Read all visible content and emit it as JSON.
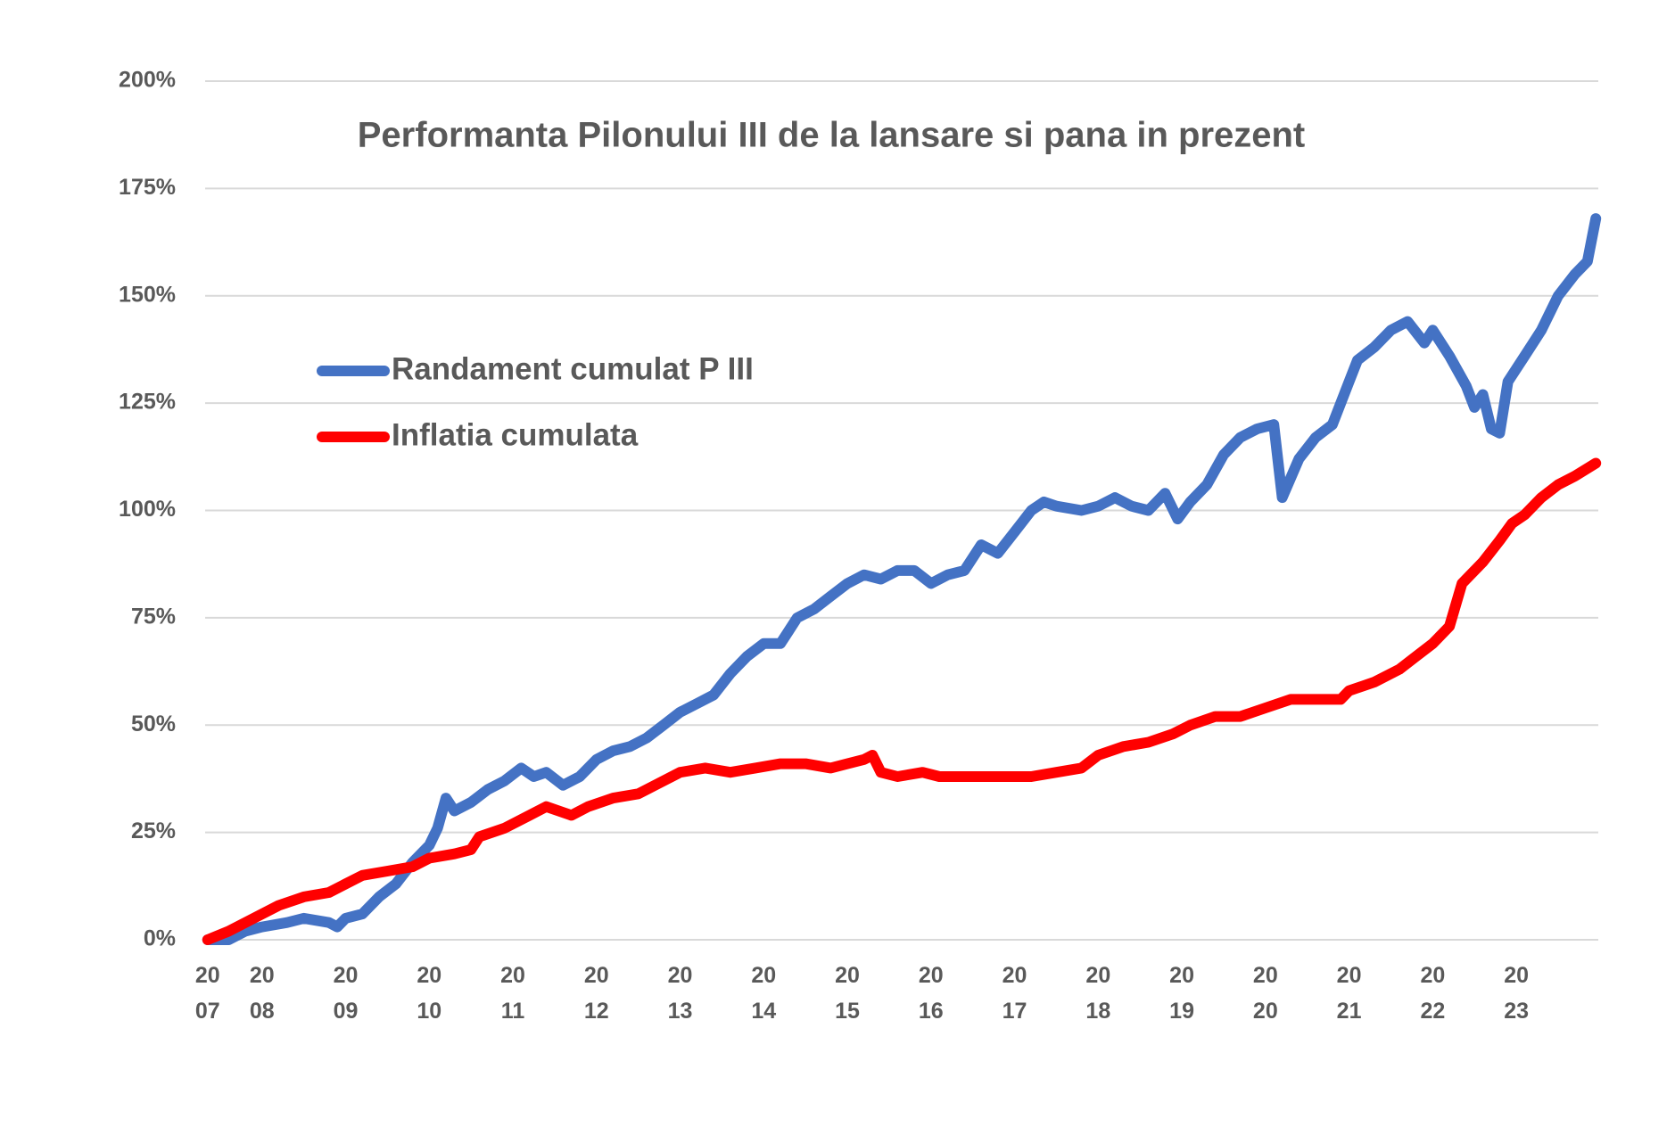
{
  "chart_data": {
    "type": "line",
    "title": "Performanta Pilonului III de la lansare si pana in prezent",
    "series": [
      {
        "name": "Randament cumulat P III",
        "color": "#4472c4",
        "x": [
          2007.35,
          2007.6,
          2007.8,
          2008.0,
          2008.3,
          2008.5,
          2008.8,
          2008.9,
          2009.0,
          2009.2,
          2009.4,
          2009.6,
          2009.8,
          2010.0,
          2010.1,
          2010.2,
          2010.3,
          2010.5,
          2010.7,
          2010.9,
          2011.1,
          2011.25,
          2011.4,
          2011.6,
          2011.8,
          2012.0,
          2012.2,
          2012.4,
          2012.6,
          2012.8,
          2013.0,
          2013.2,
          2013.4,
          2013.6,
          2013.8,
          2014.0,
          2014.2,
          2014.4,
          2014.6,
          2014.8,
          2015.0,
          2015.2,
          2015.4,
          2015.6,
          2015.8,
          2016.0,
          2016.2,
          2016.4,
          2016.6,
          2016.8,
          2017.0,
          2017.2,
          2017.35,
          2017.5,
          2017.8,
          2018.0,
          2018.2,
          2018.4,
          2018.6,
          2018.8,
          2018.95,
          2019.1,
          2019.3,
          2019.5,
          2019.7,
          2019.9,
          2020.1,
          2020.2,
          2020.4,
          2020.6,
          2020.8,
          2021.0,
          2021.1,
          2021.3,
          2021.5,
          2021.7,
          2021.9,
          2022.0,
          2022.2,
          2022.4,
          2022.5,
          2022.6,
          2022.7,
          2022.8,
          2022.9,
          2023.1,
          2023.3,
          2023.5,
          2023.7,
          2023.85,
          2023.95
        ],
        "values": [
          0,
          0,
          2,
          3,
          4,
          5,
          4,
          3,
          5,
          6,
          10,
          13,
          18,
          22,
          26,
          33,
          30,
          32,
          35,
          37,
          40,
          38,
          39,
          36,
          38,
          42,
          44,
          45,
          47,
          50,
          53,
          55,
          57,
          62,
          66,
          69,
          69,
          75,
          77,
          80,
          83,
          85,
          84,
          86,
          86,
          83,
          85,
          86,
          92,
          90,
          95,
          100,
          102,
          101,
          100,
          101,
          103,
          101,
          100,
          104,
          98,
          102,
          106,
          113,
          117,
          119,
          120,
          103,
          112,
          117,
          120,
          130,
          135,
          138,
          142,
          144,
          139,
          142,
          136,
          129,
          124,
          127,
          119,
          118,
          130,
          136,
          142,
          150,
          155,
          158,
          168
        ]
      },
      {
        "name": "Inflatia cumulata",
        "color": "#ff0000",
        "x": [
          2007.35,
          2007.6,
          2007.9,
          2008.2,
          2008.5,
          2008.8,
          2009.0,
          2009.2,
          2009.5,
          2009.8,
          2010.0,
          2010.3,
          2010.5,
          2010.6,
          2010.9,
          2011.2,
          2011.4,
          2011.7,
          2011.9,
          2012.2,
          2012.5,
          2012.7,
          2013.0,
          2013.3,
          2013.6,
          2013.9,
          2014.2,
          2014.5,
          2014.8,
          2015.0,
          2015.2,
          2015.3,
          2015.4,
          2015.6,
          2015.9,
          2016.1,
          2016.5,
          2016.9,
          2017.2,
          2017.5,
          2017.8,
          2018.0,
          2018.3,
          2018.6,
          2018.9,
          2019.1,
          2019.4,
          2019.7,
          2020.0,
          2020.3,
          2020.6,
          2020.9,
          2021.0,
          2021.3,
          2021.6,
          2021.8,
          2022.0,
          2022.2,
          2022.35,
          2022.6,
          2022.8,
          2022.95,
          2023.1,
          2023.3,
          2023.5,
          2023.7,
          2023.95
        ],
        "values": [
          0,
          2,
          5,
          8,
          10,
          11,
          13,
          15,
          16,
          17,
          19,
          20,
          21,
          24,
          26,
          29,
          31,
          29,
          31,
          33,
          34,
          36,
          39,
          40,
          39,
          40,
          41,
          41,
          40,
          41,
          42,
          43,
          39,
          38,
          39,
          38,
          38,
          38,
          38,
          39,
          40,
          43,
          45,
          46,
          48,
          50,
          52,
          52,
          54,
          56,
          56,
          56,
          58,
          60,
          63,
          66,
          69,
          73,
          83,
          88,
          93,
          97,
          99,
          103,
          106,
          108,
          111
        ]
      }
    ],
    "xlim": [
      2007.32,
      2023.98
    ],
    "xticks": [
      {
        "value": 2007.35,
        "label": "2007"
      },
      {
        "value": 2008,
        "label": "2008"
      },
      {
        "value": 2009,
        "label": "2009"
      },
      {
        "value": 2010,
        "label": "2010"
      },
      {
        "value": 2011,
        "label": "2011"
      },
      {
        "value": 2012,
        "label": "2012"
      },
      {
        "value": 2013,
        "label": "2013"
      },
      {
        "value": 2014,
        "label": "2014"
      },
      {
        "value": 2015,
        "label": "2015"
      },
      {
        "value": 2016,
        "label": "2016"
      },
      {
        "value": 2017,
        "label": "2017"
      },
      {
        "value": 2018,
        "label": "2018"
      },
      {
        "value": 2019,
        "label": "2019"
      },
      {
        "value": 2020,
        "label": "2020"
      },
      {
        "value": 2021,
        "label": "2021"
      },
      {
        "value": 2022,
        "label": "2022"
      },
      {
        "value": 2023,
        "label": "2023"
      }
    ],
    "ylim": [
      0,
      200
    ],
    "yticks": [
      {
        "value": 0,
        "label": "0%"
      },
      {
        "value": 25,
        "label": "25%"
      },
      {
        "value": 50,
        "label": "50%"
      },
      {
        "value": 75,
        "label": "75%"
      },
      {
        "value": 100,
        "label": "100%"
      },
      {
        "value": 125,
        "label": "125%"
      },
      {
        "value": 150,
        "label": "150%"
      },
      {
        "value": 175,
        "label": "175%"
      },
      {
        "value": 200,
        "label": "200%"
      }
    ],
    "grid": true,
    "legend": "left"
  }
}
